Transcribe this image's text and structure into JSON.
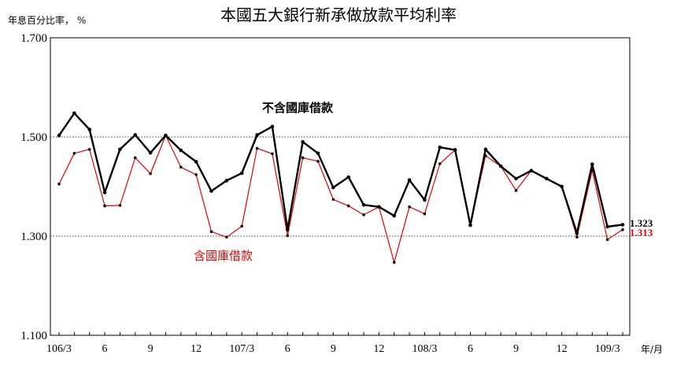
{
  "chart_data": {
    "type": "line",
    "title": "本國五大銀行新承做放款平均利率",
    "ylabel": "年息百分比率， %",
    "xlabel": "年/月",
    "ylim": [
      1.1,
      1.7
    ],
    "yticks": [
      "1.100",
      "1.300",
      "1.500",
      "1.700"
    ],
    "grid_y": [
      1.3,
      1.5
    ],
    "x": [
      "106/3",
      "106/4",
      "106/5",
      "106/6",
      "106/7",
      "106/8",
      "106/9",
      "106/10",
      "106/11",
      "106/12",
      "107/1",
      "107/2",
      "107/3",
      "107/4",
      "107/5",
      "107/6",
      "107/7",
      "107/8",
      "107/9",
      "107/10",
      "107/11",
      "107/12",
      "108/1",
      "108/2",
      "108/3",
      "108/4",
      "108/5",
      "108/6",
      "108/7",
      "108/8",
      "108/9",
      "108/10",
      "108/11",
      "108/12",
      "109/1",
      "109/2",
      "109/3",
      "109/4"
    ],
    "xtick_labels": [
      {
        "index": 0,
        "label": "106/3"
      },
      {
        "index": 3,
        "label": "6"
      },
      {
        "index": 6,
        "label": "9"
      },
      {
        "index": 9,
        "label": "12"
      },
      {
        "index": 12,
        "label": "107/3"
      },
      {
        "index": 15,
        "label": "6"
      },
      {
        "index": 18,
        "label": "9"
      },
      {
        "index": 21,
        "label": "12"
      },
      {
        "index": 24,
        "label": "108/3"
      },
      {
        "index": 27,
        "label": "6"
      },
      {
        "index": 30,
        "label": "9"
      },
      {
        "index": 33,
        "label": "12"
      },
      {
        "index": 36,
        "label": "109/3"
      }
    ],
    "series": [
      {
        "name": "不含國庫借款",
        "color": "#000000",
        "values": [
          1.503,
          1.548,
          1.515,
          1.388,
          1.475,
          1.504,
          1.468,
          1.503,
          1.473,
          1.45,
          1.391,
          1.412,
          1.427,
          1.504,
          1.521,
          1.313,
          1.49,
          1.467,
          1.398,
          1.419,
          1.363,
          1.359,
          1.341,
          1.413,
          1.373,
          1.479,
          1.474,
          1.322,
          1.475,
          1.441,
          1.416,
          1.432,
          1.416,
          1.4,
          1.306,
          1.445,
          1.319,
          1.323
        ],
        "end_label": "1.323"
      },
      {
        "name": "含國庫借款",
        "color": "#e60000",
        "values": [
          1.405,
          1.467,
          1.475,
          1.361,
          1.362,
          1.458,
          1.426,
          1.503,
          1.439,
          1.424,
          1.309,
          1.298,
          1.32,
          1.477,
          1.466,
          1.301,
          1.458,
          1.451,
          1.374,
          1.361,
          1.343,
          1.359,
          1.247,
          1.359,
          1.345,
          1.446,
          1.474,
          1.322,
          1.462,
          1.441,
          1.392,
          1.432,
          1.416,
          1.4,
          1.298,
          1.433,
          1.293,
          1.313
        ],
        "end_label": "1.313"
      }
    ]
  }
}
